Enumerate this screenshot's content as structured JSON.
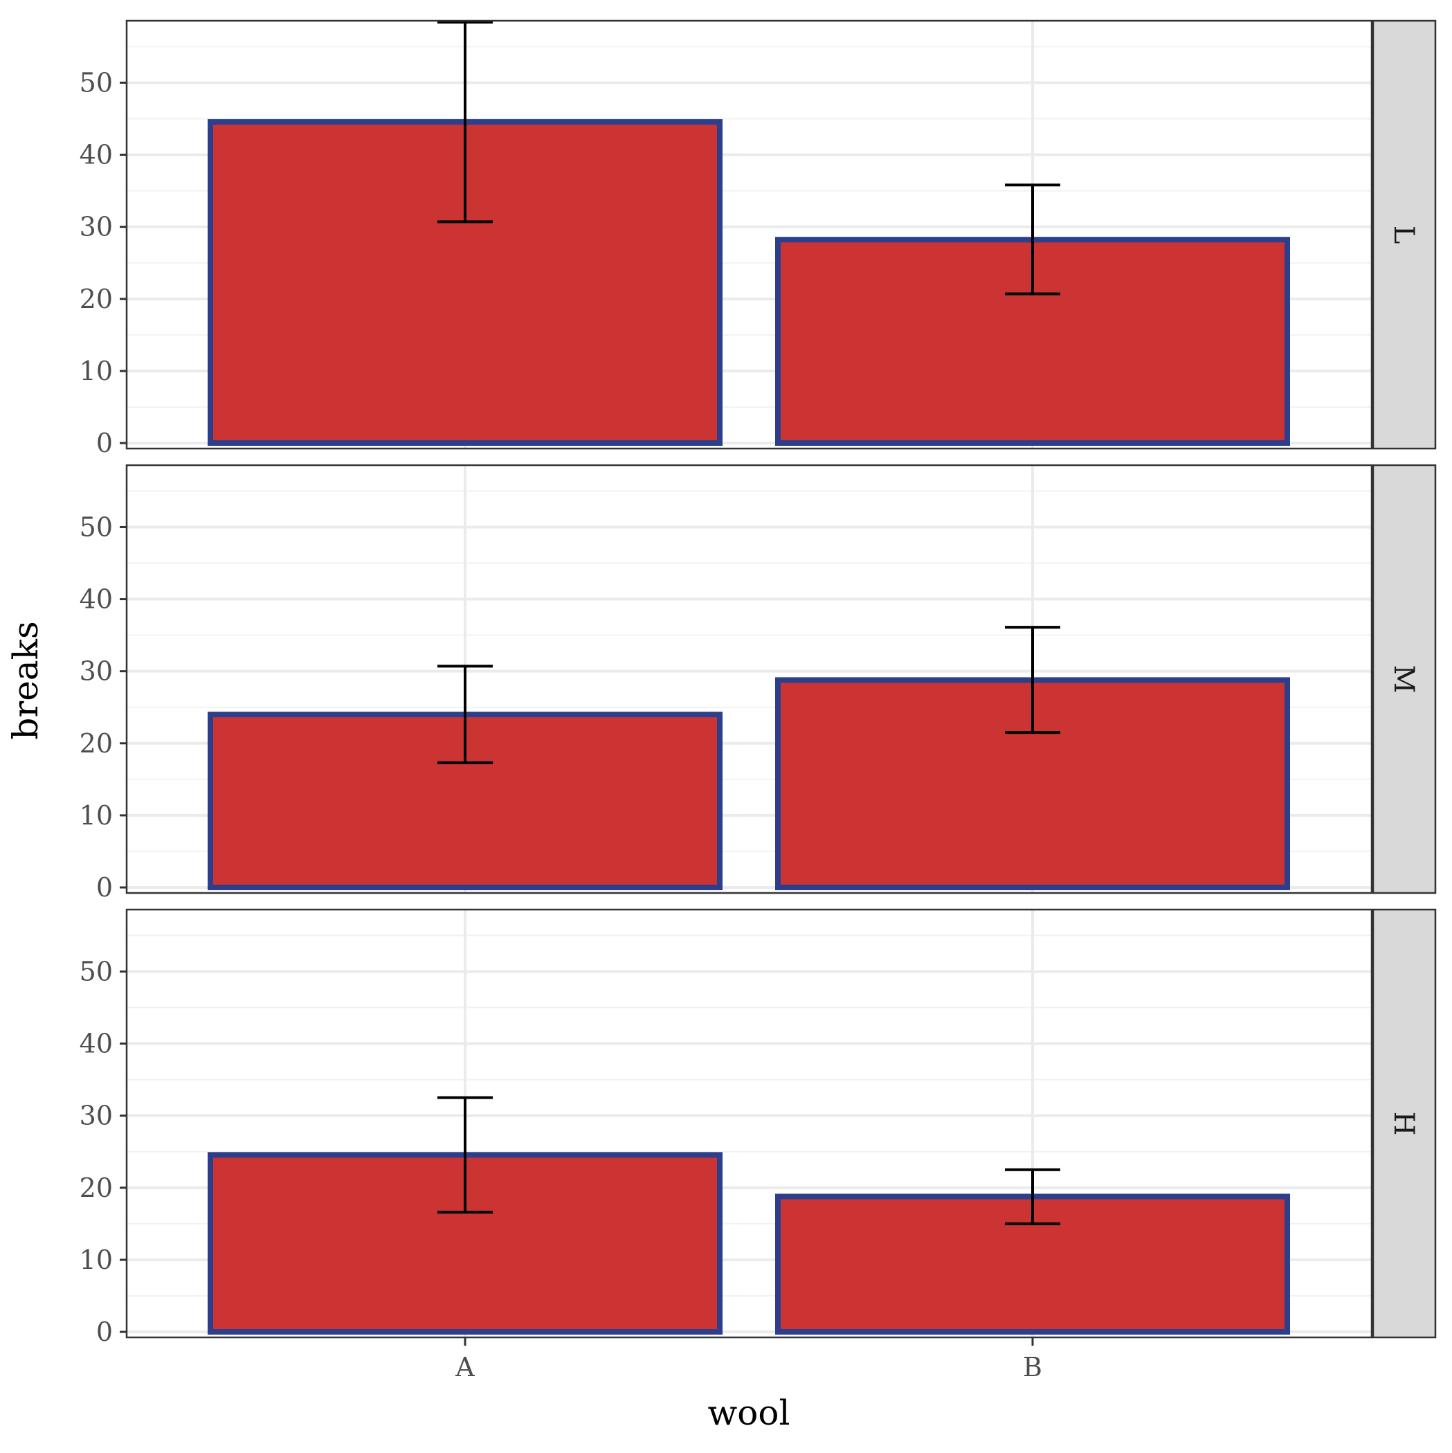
{
  "chart_data": {
    "type": "bar",
    "facet_by": "tension",
    "facets": [
      {
        "label": "L",
        "categories": [
          "A",
          "B"
        ],
        "values": [
          44.56,
          28.22
        ],
        "err_low": [
          30.7,
          20.7
        ],
        "err_high": [
          58.4,
          35.8
        ]
      },
      {
        "label": "M",
        "categories": [
          "A",
          "B"
        ],
        "values": [
          24.0,
          28.78
        ],
        "err_low": [
          17.3,
          21.5
        ],
        "err_high": [
          30.7,
          36.1
        ]
      },
      {
        "label": "H",
        "categories": [
          "A",
          "B"
        ],
        "values": [
          24.56,
          18.78
        ],
        "err_low": [
          16.6,
          15.0
        ],
        "err_high": [
          32.5,
          22.5
        ]
      }
    ],
    "xlabel": "wool",
    "ylabel": "breaks",
    "ylim": [
      0,
      58.4
    ],
    "yticks": [
      0,
      10,
      20,
      30,
      40,
      50
    ],
    "xticks": [
      "A",
      "B"
    ],
    "grid": true,
    "colors": {
      "bar_fill": "#cc3333",
      "bar_outline": "#2b3f8c",
      "errorbar": "#000000",
      "strip_fill": "#d9d9d9",
      "grid_major": "#ebebeb",
      "grid_minor": "#f2f2f2",
      "panel_border": "#333333"
    }
  }
}
